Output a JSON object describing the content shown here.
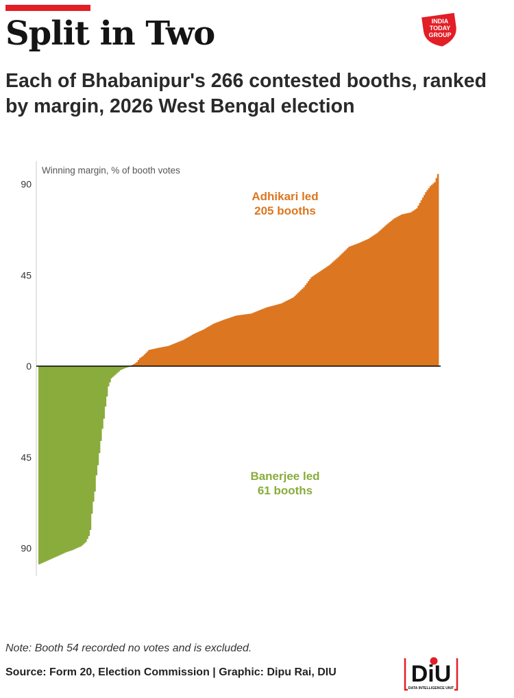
{
  "title": "Split in Two",
  "subtitle": "Each of Bhabanipur's 266 contested booths, ranked by margin, 2026 West Bengal election",
  "note": "Note: Booth 54 recorded no votes and is excluded.",
  "source": "Source: Form 20, Election Commission | Graphic: Dipu Rai, DIU",
  "logos": {
    "publisher_text": "INDIA TODAY GROUP",
    "diu_mark": "DiU",
    "diu_text": "DATA INTELLIGENCE UNIT"
  },
  "colors": {
    "accent": "#e21e26",
    "adhikari": "#dc7620",
    "banerjee": "#89ac3c"
  },
  "chart_data": {
    "type": "bar",
    "ylabel": "Winning margin, % of booth votes",
    "ylim": [
      -97,
      100
    ],
    "yticks": [
      {
        "value": 90,
        "label": "90"
      },
      {
        "value": 45,
        "label": "45"
      },
      {
        "value": 0,
        "label": "0"
      },
      {
        "value": -45,
        "label": "45"
      },
      {
        "value": -90,
        "label": "90"
      }
    ],
    "series": [
      {
        "name": "Banerjee led",
        "count_label": "61 booths",
        "booth_count": 61,
        "sign": -1,
        "knots": [
          [
            0,
            98
          ],
          [
            6,
            96
          ],
          [
            12,
            94
          ],
          [
            18,
            92
          ],
          [
            22,
            91
          ],
          [
            28,
            89
          ],
          [
            31,
            87
          ],
          [
            33,
            84
          ],
          [
            34,
            81
          ],
          [
            35,
            73
          ],
          [
            36,
            67
          ],
          [
            37,
            62
          ],
          [
            38,
            54
          ],
          [
            39,
            49
          ],
          [
            40,
            43
          ],
          [
            41,
            37
          ],
          [
            42,
            31
          ],
          [
            43,
            26
          ],
          [
            44,
            20
          ],
          [
            45,
            15
          ],
          [
            46,
            10
          ],
          [
            48,
            6
          ],
          [
            51,
            4
          ],
          [
            54,
            2
          ],
          [
            57,
            1
          ],
          [
            60,
            0.3
          ]
        ]
      },
      {
        "name": "Adhikari led",
        "count_label": "205 booths",
        "booth_count": 205,
        "sign": 1,
        "knots": [
          [
            0,
            0.3
          ],
          [
            2,
            1
          ],
          [
            4,
            2
          ],
          [
            6,
            4
          ],
          [
            8,
            5
          ],
          [
            12,
            8
          ],
          [
            18,
            9
          ],
          [
            25,
            10
          ],
          [
            35,
            13
          ],
          [
            42,
            16
          ],
          [
            48,
            18
          ],
          [
            55,
            21
          ],
          [
            62,
            23
          ],
          [
            70,
            25
          ],
          [
            80,
            26
          ],
          [
            90,
            29
          ],
          [
            100,
            31
          ],
          [
            108,
            34
          ],
          [
            115,
            39
          ],
          [
            120,
            44
          ],
          [
            126,
            47
          ],
          [
            132,
            50
          ],
          [
            138,
            54
          ],
          [
            145,
            59
          ],
          [
            152,
            61
          ],
          [
            158,
            63
          ],
          [
            164,
            66
          ],
          [
            170,
            70
          ],
          [
            175,
            73
          ],
          [
            180,
            75
          ],
          [
            186,
            76
          ],
          [
            190,
            78
          ],
          [
            193,
            82
          ],
          [
            196,
            86
          ],
          [
            199,
            89
          ],
          [
            202,
            91
          ],
          [
            204,
            95
          ]
        ]
      }
    ]
  }
}
